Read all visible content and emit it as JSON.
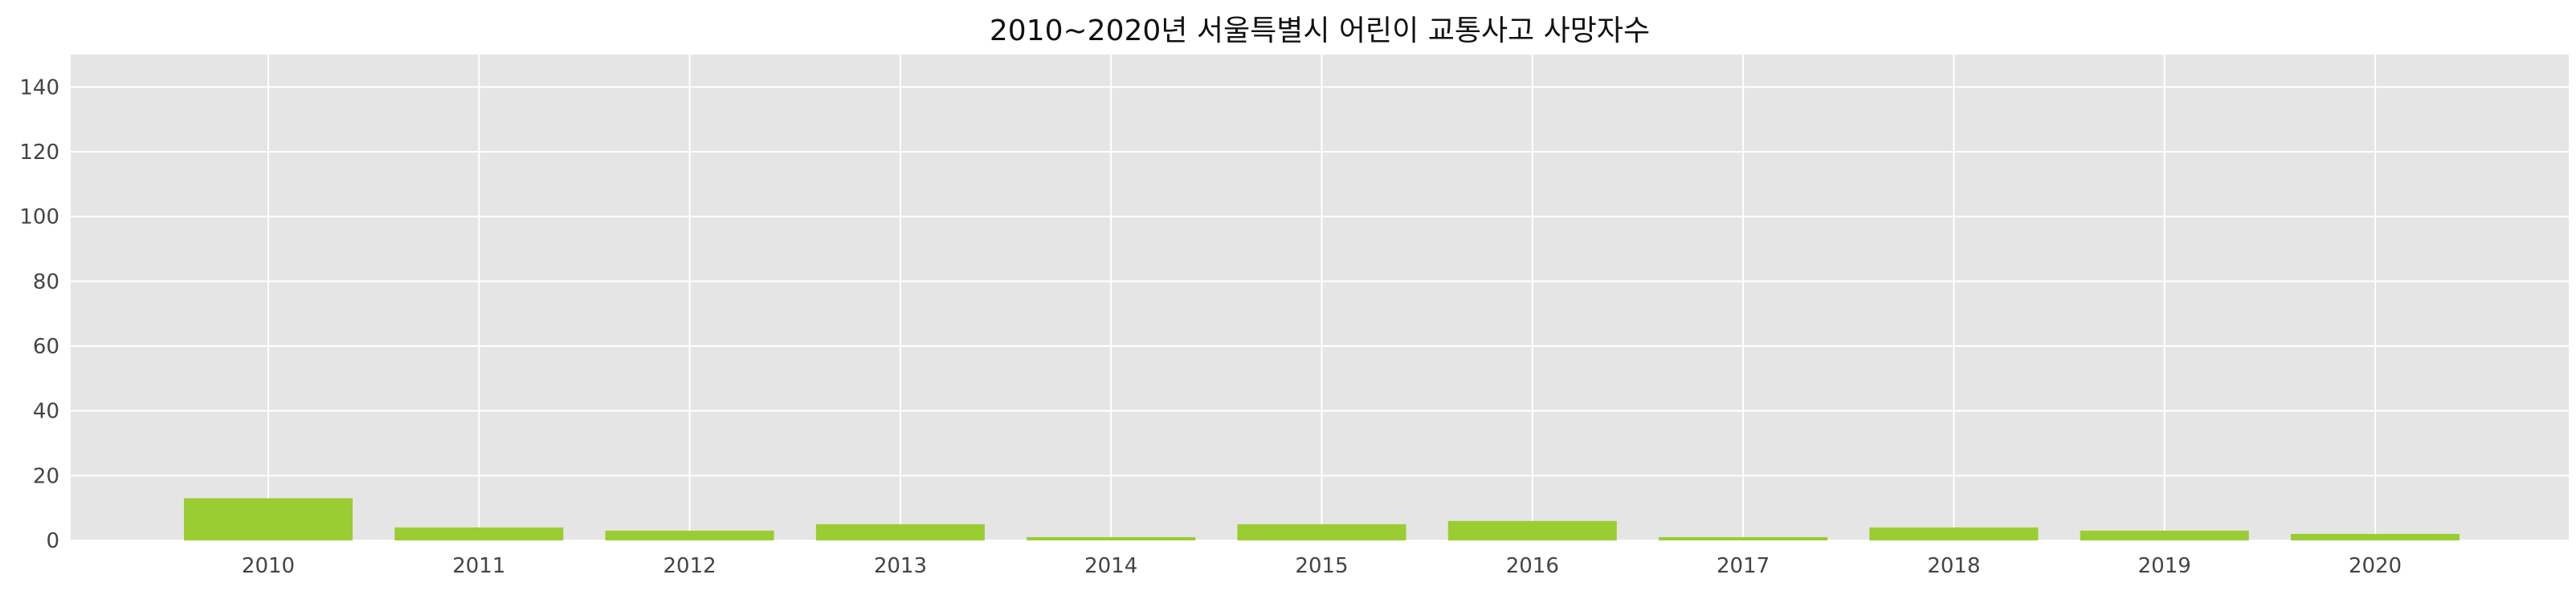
{
  "chart_data": {
    "type": "bar",
    "title": "2010~2020년 서울특별시 어린이 교통사고 사망자수",
    "xlabel": "",
    "ylabel": "",
    "categories": [
      "2010",
      "2011",
      "2012",
      "2013",
      "2014",
      "2015",
      "2016",
      "2017",
      "2018",
      "2019",
      "2020"
    ],
    "values": [
      13,
      4,
      3,
      5,
      1,
      5,
      6,
      1,
      4,
      3,
      2
    ],
    "ylim": [
      0,
      150
    ],
    "yticks": [
      0,
      20,
      40,
      60,
      80,
      100,
      120,
      140
    ],
    "grid": true,
    "legend": "none",
    "colors": {
      "bar": "#9acd32",
      "plot_background": "#e5e5e5",
      "grid": "#ffffff"
    }
  }
}
